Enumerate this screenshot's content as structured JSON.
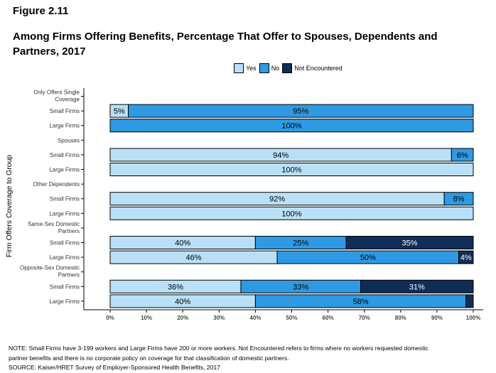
{
  "figure_label": "Figure 2.11",
  "title": "Among Firms Offering Benefits, Percentage That Offer to Spouses, Dependents and Partners, 2017",
  "colors": {
    "Yes": "#b9e0f7",
    "No": "#2e9ae3",
    "Not Encountered": "#0f2d57"
  },
  "chart_data": {
    "type": "bar",
    "orientation": "horizontal",
    "stacked": true,
    "ylabel": "Firm Offers Coverage to Group",
    "xlim": [
      0,
      100
    ],
    "xticks": [
      "0%",
      "10%",
      "20%",
      "30%",
      "40%",
      "50%",
      "60%",
      "70%",
      "80%",
      "90%",
      "100%"
    ],
    "legend": {
      "position": "top",
      "entries": [
        "Yes",
        "No",
        "Not Encountered"
      ]
    },
    "rows": [
      {
        "label": "Only Offers Single Coverage",
        "header": true
      },
      {
        "label": "Small Firms",
        "values": [
          5,
          95,
          0
        ],
        "labels": [
          "5%",
          "95%",
          ""
        ]
      },
      {
        "label": "Large Firms",
        "values": [
          0,
          100,
          0
        ],
        "labels": [
          "",
          "100%",
          ""
        ]
      },
      {
        "label": "Spouses",
        "header": true
      },
      {
        "label": "Small Firms",
        "values": [
          94,
          6,
          0
        ],
        "labels": [
          "94%",
          "6%",
          ""
        ]
      },
      {
        "label": "Large Firms",
        "values": [
          100,
          0,
          0
        ],
        "labels": [
          "100%",
          "",
          ""
        ]
      },
      {
        "label": "Other Dependents",
        "header": true
      },
      {
        "label": "Small Firms",
        "values": [
          92,
          8,
          0
        ],
        "labels": [
          "92%",
          "8%",
          ""
        ]
      },
      {
        "label": "Large Firms",
        "values": [
          100,
          0,
          0
        ],
        "labels": [
          "100%",
          "",
          ""
        ]
      },
      {
        "label": "Same-Sex Domestic Partners",
        "header": true
      },
      {
        "label": "Small Firms",
        "values": [
          40,
          25,
          35
        ],
        "labels": [
          "40%",
          "25%",
          "35%"
        ]
      },
      {
        "label": "Large Firms",
        "values": [
          46,
          50,
          4
        ],
        "labels": [
          "46%",
          "50%",
          "4%"
        ]
      },
      {
        "label": "Opposite-Sex Domestic Partners",
        "header": true
      },
      {
        "label": "Small Firms",
        "values": [
          36,
          33,
          31
        ],
        "labels": [
          "36%",
          "33%",
          "31%"
        ]
      },
      {
        "label": "Large Firms",
        "values": [
          40,
          58,
          2
        ],
        "labels": [
          "40%",
          "58%",
          ""
        ]
      }
    ]
  },
  "notes": {
    "line1": "NOTE: Small Firms have 3-199 workers and Large Firms have 200 or more workers. Not Encountered refers to firms where no workers requested domestic",
    "line2": "partner benefits and there is no corporate policy on coverage for that classification of domestic partners.",
    "line3": "SOURCE: Kaiser/HRET Survey of Employer-Sponsored Health Benefits, 2017"
  }
}
